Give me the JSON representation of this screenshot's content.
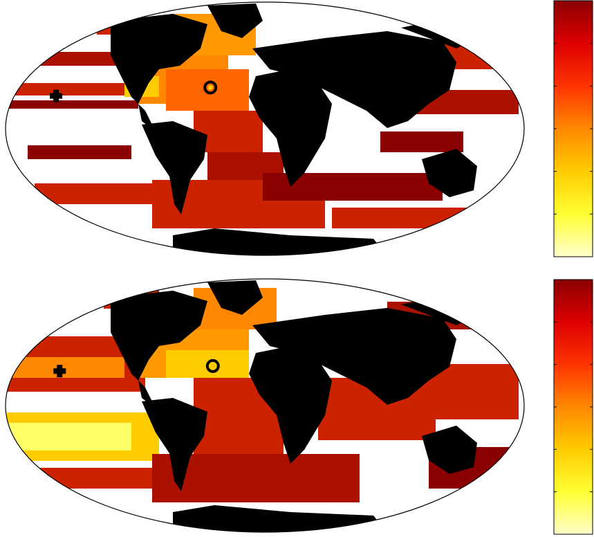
{
  "panels": [
    {
      "id": "top",
      "markers": [
        {
          "type": "cross",
          "lon": -150,
          "lat": 19
        },
        {
          "type": "ring",
          "lon": -40,
          "lat": 24
        }
      ]
    },
    {
      "id": "bottom",
      "markers": [
        {
          "type": "cross",
          "lon": -148,
          "lat": 20
        },
        {
          "type": "ring",
          "lon": -38,
          "lat": 23
        }
      ]
    }
  ],
  "colormap": {
    "name": "hot-reversed",
    "stops": [
      "#ffffcc",
      "#ffff33",
      "#ffcc00",
      "#ff8800",
      "#ff3300",
      "#dd0000",
      "#8b0000"
    ]
  },
  "colors": {
    "land": "#000000",
    "ocean_missing": "#ffffff",
    "map_outline": "#000000",
    "marker_ring_inner": "#ffcc00"
  }
}
